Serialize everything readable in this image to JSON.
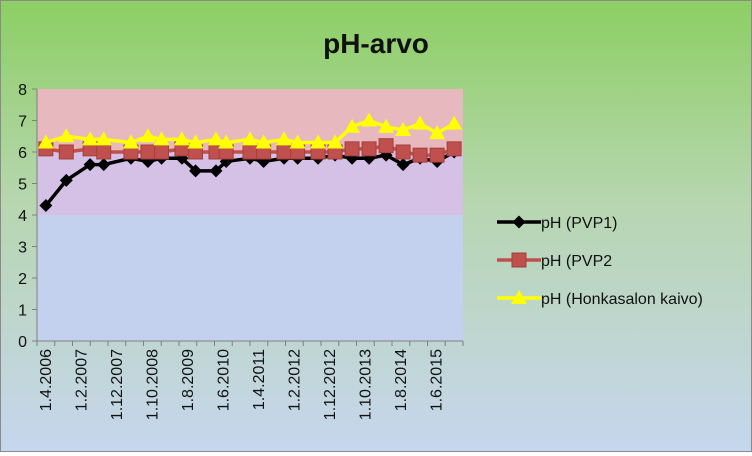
{
  "chart_data": {
    "type": "line",
    "title": "pH-arvo",
    "xlabel": "",
    "ylabel": "",
    "ylim": [
      0,
      8
    ],
    "yticks": [
      0,
      1,
      2,
      3,
      4,
      5,
      6,
      7,
      8
    ],
    "grid": false,
    "bands": [
      {
        "from": 6.0,
        "to": 8.0,
        "color": "#e8b8bf"
      },
      {
        "from": 4.0,
        "to": 6.0,
        "color": "#d5c1e6"
      },
      {
        "from": 0.0,
        "to": 4.0,
        "color": "#c4d1ee"
      }
    ],
    "legend_position": "right",
    "categories": [
      "1.4.2006",
      "",
      "1.2.2007",
      "",
      "1.12.2007",
      "",
      "1.10.2008",
      "",
      "1.8.2009",
      "",
      "1.6.2010",
      "",
      "1.4.2011",
      "",
      "1.2.2012",
      "",
      "1.12.2012",
      "",
      "1.10.2013",
      "",
      "1.8.2014",
      "",
      "1.6.2015",
      ""
    ],
    "x": [
      0.0,
      0.6,
      1.3,
      1.7,
      2.5,
      3.0,
      3.4,
      4.0,
      4.4,
      5.0,
      5.3,
      6.0,
      6.4,
      7.0,
      7.4,
      8.0,
      8.5,
      9.0,
      9.5,
      10.0,
      10.5,
      11.0,
      11.5,
      12.0
    ],
    "series": [
      {
        "name": "pH (PVP1)",
        "color": "#000000",
        "marker": "diamond",
        "values": [
          4.3,
          5.1,
          5.6,
          5.6,
          5.8,
          5.7,
          5.8,
          5.8,
          5.4,
          5.4,
          5.7,
          5.8,
          5.7,
          5.8,
          5.8,
          5.8,
          5.9,
          5.8,
          5.8,
          5.9,
          5.6,
          5.8,
          5.7,
          6.0
        ]
      },
      {
        "name": "pH (PVP2",
        "color": "#c0504d",
        "marker": "square",
        "values": [
          6.1,
          6.0,
          6.1,
          6.0,
          6.0,
          6.0,
          6.0,
          6.1,
          6.0,
          6.0,
          6.0,
          6.0,
          6.0,
          6.0,
          6.0,
          6.0,
          6.0,
          6.1,
          6.1,
          6.2,
          6.0,
          5.9,
          5.9,
          6.1
        ]
      },
      {
        "name": "pH (Honkasalon kaivo)",
        "color": "#ffff00",
        "marker": "triangle",
        "values": [
          6.3,
          6.5,
          6.4,
          6.4,
          6.3,
          6.5,
          6.4,
          6.4,
          6.3,
          6.4,
          6.3,
          6.4,
          6.3,
          6.4,
          6.3,
          6.3,
          6.3,
          6.8,
          7.0,
          6.8,
          6.7,
          6.9,
          6.6,
          6.9
        ]
      }
    ]
  }
}
